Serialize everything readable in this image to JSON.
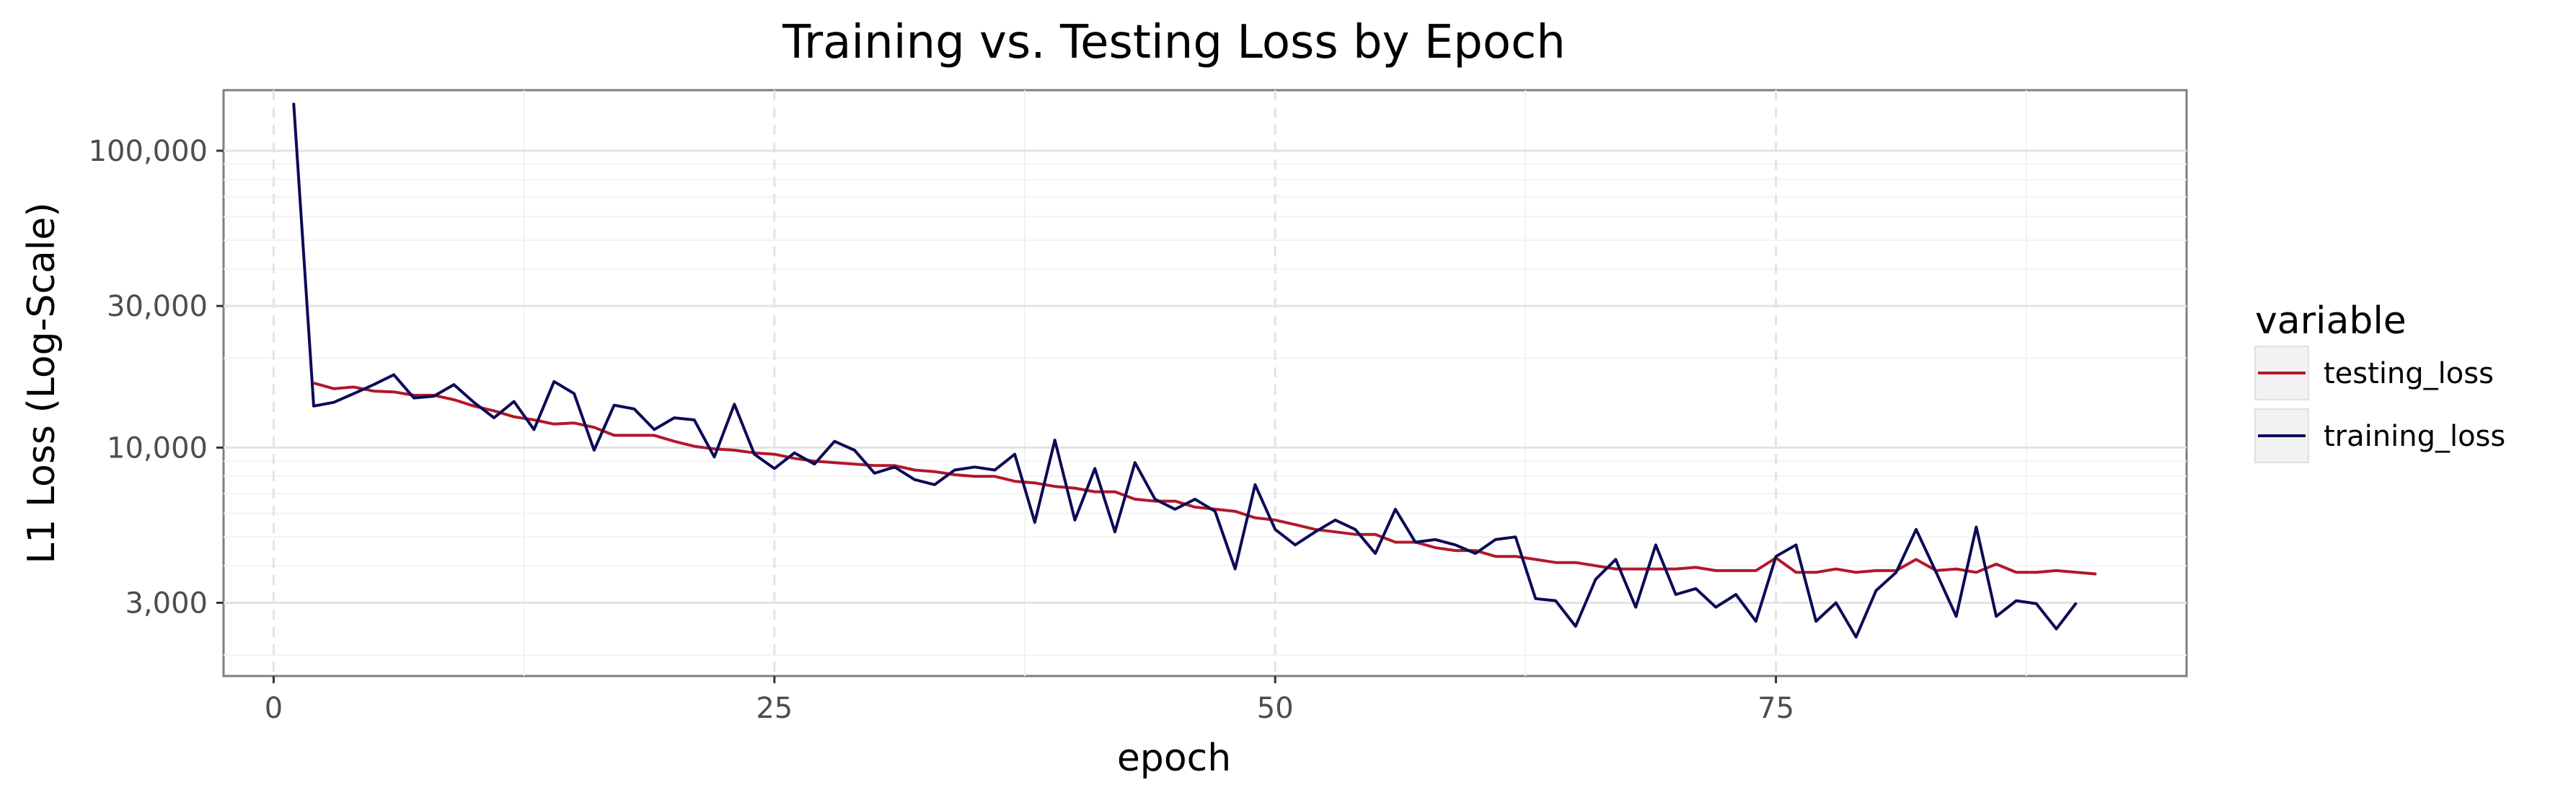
{
  "chart_data": {
    "type": "line",
    "title": "Training vs. Testing Loss by Epoch",
    "xlabel": "epoch",
    "ylabel": "L1 Loss (Log-Scale)",
    "y_scale": "log10",
    "xlim": [
      -2.5,
      95.5
    ],
    "ylim": [
      1700,
      160000
    ],
    "x_ticks": [
      0,
      25,
      50,
      75
    ],
    "x_tick_labels": [
      "0",
      "25",
      "50",
      "75"
    ],
    "y_ticks": [
      3000,
      10000,
      30000,
      100000
    ],
    "y_tick_labels": [
      "3,000",
      "10,000",
      "30,000",
      "100,000"
    ],
    "grid": true,
    "legend": {
      "title": "variable",
      "position": "right",
      "entries": [
        "testing_loss",
        "training_loss"
      ]
    },
    "x": [
      1,
      2,
      3,
      4,
      5,
      6,
      7,
      8,
      9,
      10,
      11,
      12,
      13,
      14,
      15,
      16,
      17,
      18,
      19,
      20,
      21,
      22,
      23,
      24,
      25,
      26,
      27,
      28,
      29,
      30,
      31,
      32,
      33,
      34,
      35,
      36,
      37,
      38,
      39,
      40,
      41,
      42,
      43,
      44,
      45,
      46,
      47,
      48,
      49,
      50,
      51,
      52,
      53,
      54,
      55,
      56,
      57,
      58,
      59,
      60,
      61,
      62,
      63,
      64,
      65,
      66,
      67,
      68,
      69,
      70,
      71,
      72,
      73,
      74,
      75,
      76,
      77,
      78,
      79,
      80,
      81,
      82,
      83,
      84,
      85,
      86,
      87,
      88,
      89,
      90,
      91
    ],
    "series": [
      {
        "name": "testing_loss",
        "color": "#B2182B",
        "values": [
          null,
          16500,
          15800,
          16000,
          15500,
          15400,
          15000,
          15000,
          14500,
          13800,
          13300,
          12700,
          12400,
          12000,
          12100,
          11700,
          11000,
          11000,
          11000,
          10500,
          10100,
          9900,
          9800,
          9600,
          9500,
          9200,
          9000,
          8900,
          8800,
          8700,
          8700,
          8400,
          8300,
          8100,
          8000,
          8000,
          7700,
          7600,
          7400,
          7300,
          7100,
          7100,
          6700,
          6600,
          6600,
          6300,
          6200,
          6100,
          5800,
          5700,
          5500,
          5300,
          5200,
          5100,
          5100,
          4800,
          4800,
          4600,
          4500,
          4500,
          4300,
          4300,
          4200,
          4100,
          4100,
          4000,
          3900,
          3900,
          3900,
          3900,
          3950,
          3850,
          3850,
          3850,
          4250,
          3800,
          3800,
          3900,
          3800,
          3850,
          3850,
          4200,
          3850,
          3900,
          3800,
          4050,
          3800,
          3800,
          3850,
          3800,
          3750
        ]
      },
      {
        "name": "training_loss",
        "color": "#0B0B57",
        "values": [
          145000,
          13800,
          14200,
          15200,
          16300,
          17600,
          14700,
          14900,
          16300,
          14200,
          12600,
          14300,
          11500,
          16700,
          15200,
          9800,
          13900,
          13500,
          11500,
          12600,
          12400,
          9300,
          14000,
          9500,
          8500,
          9600,
          8800,
          10500,
          9800,
          8200,
          8600,
          7800,
          7500,
          8400,
          8600,
          8400,
          9500,
          5600,
          10600,
          5700,
          8500,
          5200,
          8900,
          6700,
          6200,
          6700,
          6100,
          3900,
          7500,
          5300,
          4700,
          5200,
          5700,
          5300,
          4400,
          6200,
          4800,
          4900,
          4700,
          4400,
          4900,
          5000,
          3100,
          3050,
          2500,
          3600,
          4200,
          2900,
          4700,
          3200,
          3350,
          2900,
          3200,
          2600,
          4300,
          4700,
          2600,
          3000,
          2300,
          3300,
          3800,
          5300,
          3800,
          2700,
          5400,
          2700,
          3050,
          2980,
          2450,
          3000,
          null
        ]
      }
    ]
  }
}
